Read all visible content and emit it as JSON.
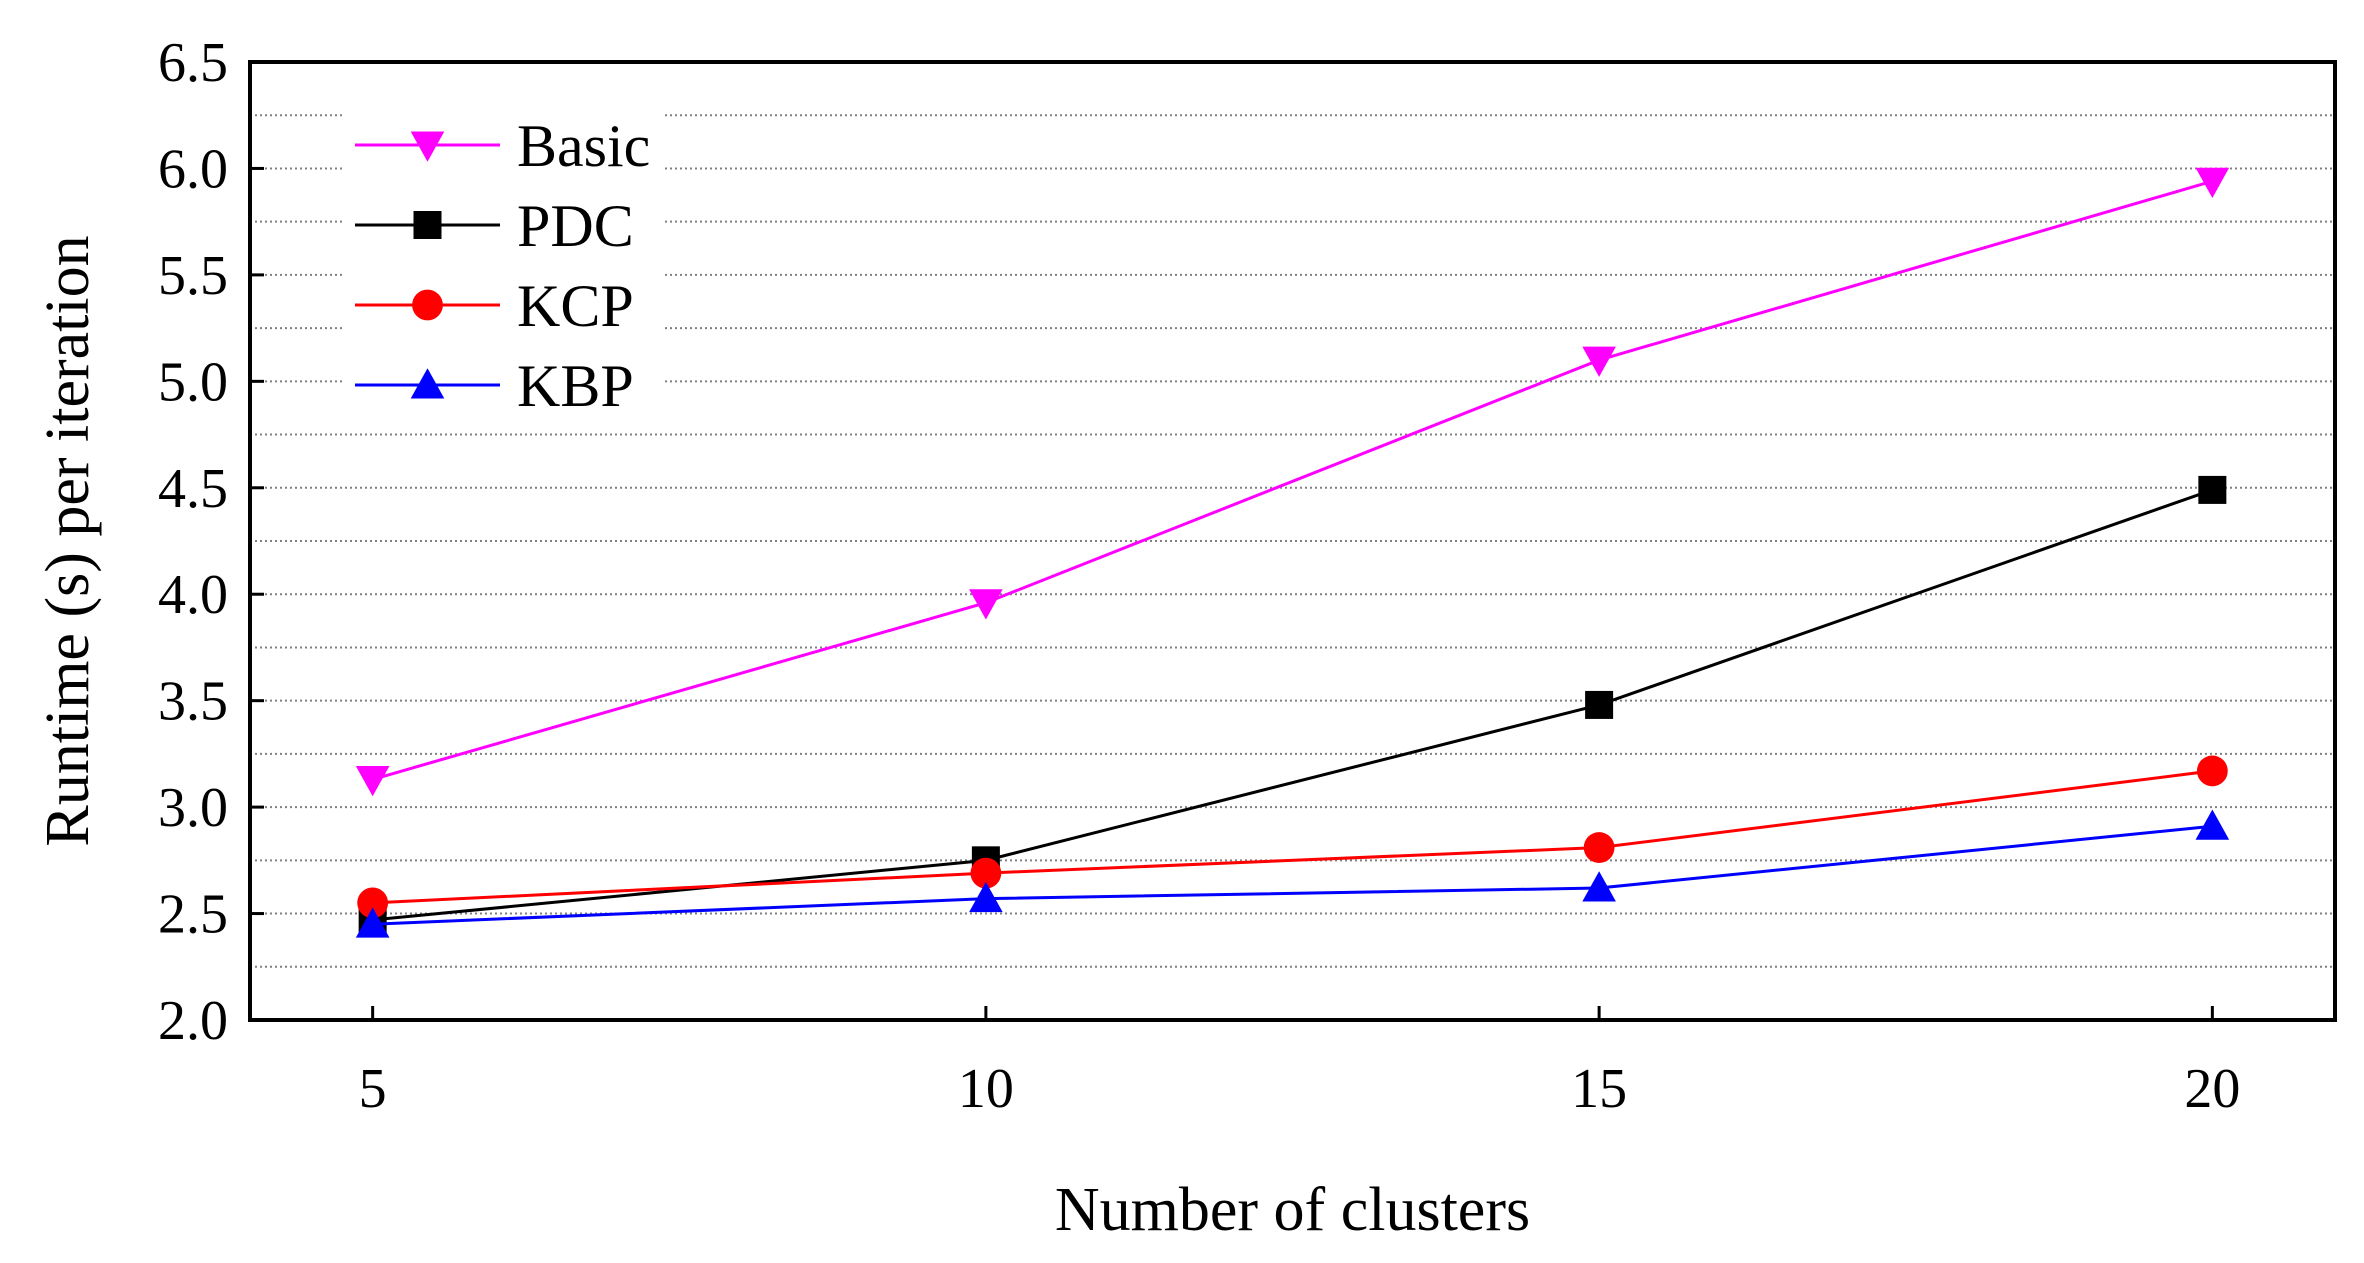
{
  "chart_data": {
    "type": "line",
    "title": "",
    "xlabel": "Number of clusters",
    "ylabel": "Runtime (s) per iteration",
    "x": [
      5,
      10,
      15,
      20
    ],
    "x_tick_labels": [
      "5",
      "10",
      "15",
      "20"
    ],
    "xlim": [
      4,
      21
    ],
    "ylim": [
      2.0,
      6.5
    ],
    "y_tick_values": [
      2.0,
      2.5,
      3.0,
      3.5,
      4.0,
      4.5,
      5.0,
      5.5,
      6.0,
      6.5
    ],
    "y_tick_labels": [
      "2.0",
      "2.5",
      "3.0",
      "3.5",
      "4.0",
      "4.5",
      "5.0",
      "5.5",
      "6.0",
      "6.5"
    ],
    "y_minor_step": 0.25,
    "grid": "horizontal dotted",
    "legend_position": "top-left",
    "series": [
      {
        "name": "Basic",
        "values": [
          3.13,
          3.96,
          5.1,
          5.94
        ],
        "color": "#ff00ff",
        "marker": "triangle-down"
      },
      {
        "name": "PDC",
        "values": [
          2.47,
          2.75,
          3.48,
          4.49
        ],
        "color": "#000000",
        "marker": "square"
      },
      {
        "name": "KCP",
        "values": [
          2.55,
          2.69,
          2.81,
          3.17
        ],
        "color": "#ff0000",
        "marker": "circle"
      },
      {
        "name": "KBP",
        "values": [
          2.45,
          2.57,
          2.62,
          2.91
        ],
        "color": "#0000ff",
        "marker": "triangle-up"
      }
    ]
  }
}
